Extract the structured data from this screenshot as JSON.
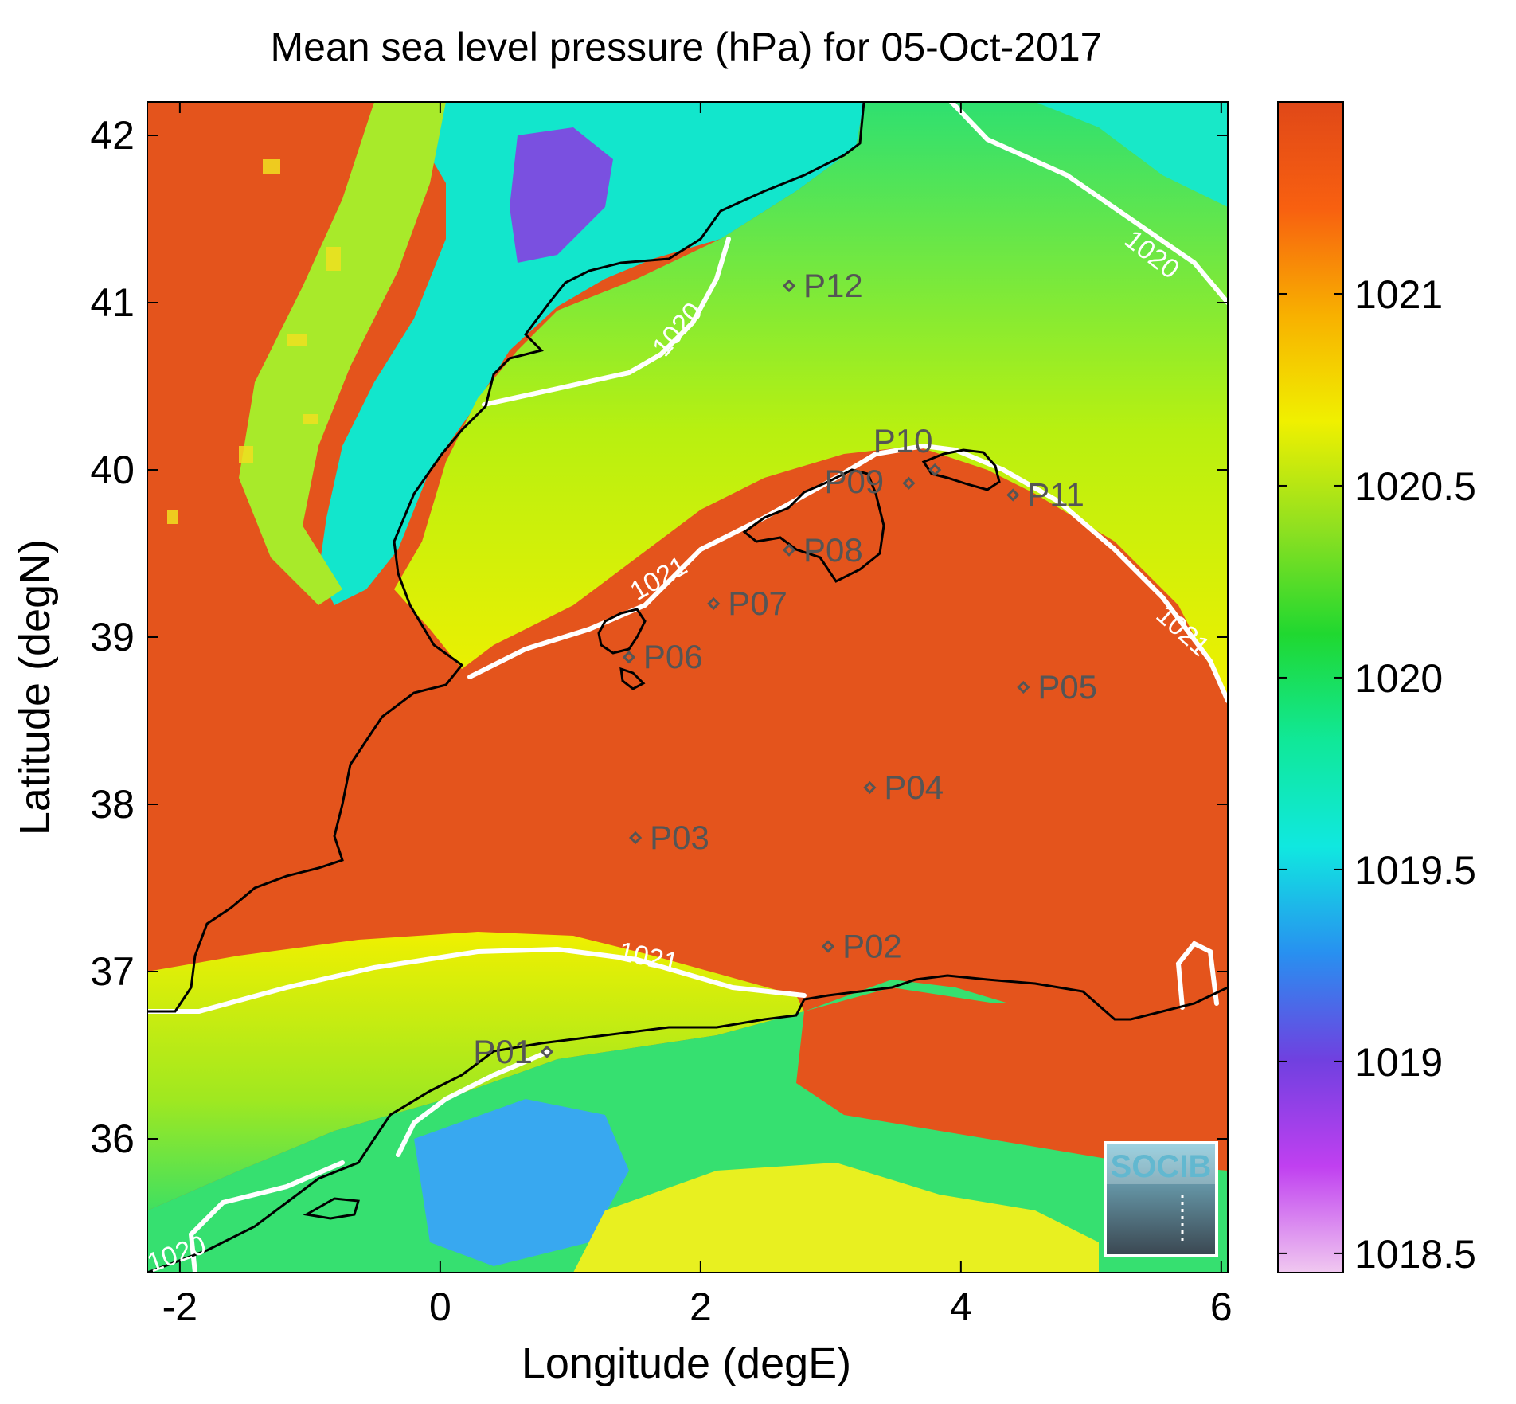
{
  "figure": {
    "title": "Mean sea level pressure (hPa) for 05-Oct-2017",
    "xlabel": "Longitude (degE)",
    "ylabel": "Latitude (degN)",
    "logo_text": "SOCIB"
  },
  "map": {
    "lon_range": [
      -2.25,
      6.05
    ],
    "lat_range": [
      35.2,
      42.2
    ],
    "x_ticks": [
      -2,
      0,
      2,
      4,
      6
    ],
    "y_ticks": [
      36,
      37,
      38,
      39,
      40,
      41,
      42
    ],
    "x_tick_labels": [
      "-2",
      "0",
      "2",
      "4",
      "6"
    ],
    "y_tick_labels": [
      "36",
      "37",
      "38",
      "39",
      "40",
      "41",
      "42"
    ],
    "points": [
      {
        "label": "P01",
        "lon": 0.82,
        "lat": 36.52
      },
      {
        "label": "P02",
        "lon": 2.98,
        "lat": 37.15
      },
      {
        "label": "P03",
        "lon": 1.5,
        "lat": 37.8
      },
      {
        "label": "P04",
        "lon": 3.3,
        "lat": 38.1
      },
      {
        "label": "P05",
        "lon": 4.48,
        "lat": 38.7
      },
      {
        "label": "P06",
        "lon": 1.45,
        "lat": 38.88
      },
      {
        "label": "P07",
        "lon": 2.1,
        "lat": 39.2
      },
      {
        "label": "P08",
        "lon": 2.68,
        "lat": 39.52
      },
      {
        "label": "P09",
        "lon": 3.6,
        "lat": 39.92
      },
      {
        "label": "P10",
        "lon": 3.8,
        "lat": 40.0
      },
      {
        "label": "P11",
        "lon": 4.4,
        "lat": 39.85
      },
      {
        "label": "P12",
        "lon": 2.68,
        "lat": 41.1
      }
    ],
    "contour_labels": [
      "1020",
      "1020",
      "1021",
      "1021",
      "1021",
      "1020"
    ]
  },
  "colorbar": {
    "range": [
      1018.45,
      1021.5
    ],
    "ticks": [
      1018.5,
      1019,
      1019.5,
      1020,
      1020.5,
      1021
    ],
    "tick_labels": [
      "1018.5",
      "1019",
      "1019.5",
      "1020",
      "1020.5",
      "1021"
    ],
    "colors": [
      "#f0c8f0",
      "#c040f0",
      "#7040e0",
      "#2890f0",
      "#10e8e0",
      "#10e898",
      "#20d830",
      "#90e020",
      "#f0f000",
      "#f8b000",
      "#f86010",
      "#e04818"
    ]
  },
  "colors": {
    "high_pressure": "#e4541c",
    "mid_pressure": "#9cea20",
    "low_pressure": "#10e8c0",
    "contour": "#ffffff",
    "coast": "#000000",
    "point_marker": "#555555"
  }
}
